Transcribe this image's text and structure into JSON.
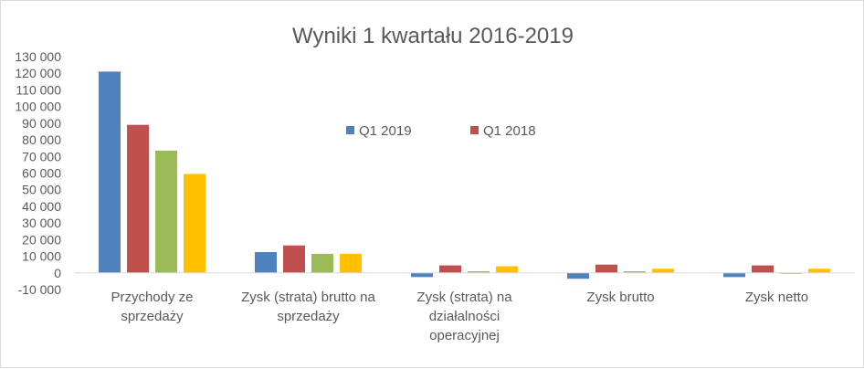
{
  "chart_data": {
    "type": "bar",
    "title": "Wyniki 1 kwartału 2016-2019",
    "xlabel": "",
    "ylabel": "",
    "ylim": [
      -10000,
      130000
    ],
    "y_ticks": [
      "130 000",
      "120 000",
      "110 000",
      "100 000",
      "90 000",
      "80 000",
      "70 000",
      "60 000",
      "50 000",
      "40 000",
      "30 000",
      "20 000",
      "10 000",
      "0",
      "-10 000"
    ],
    "categories": [
      [
        "Przychody ze",
        "sprzedaży"
      ],
      [
        "Zysk (strata) brutto na",
        "sprzedaży"
      ],
      [
        "Zysk (strata) na",
        "działalności",
        "operacyjnej"
      ],
      [
        "Zysk brutto"
      ],
      [
        "Zysk netto"
      ]
    ],
    "legend_position": "center",
    "grid": false,
    "series": [
      {
        "name": "Q1 2019",
        "color": "#4f81bd",
        "values": [
          121000,
          12500,
          -2500,
          -3500,
          -2500
        ]
      },
      {
        "name": "Q1 2018",
        "color": "#c0504d",
        "values": [
          89000,
          16500,
          4500,
          5000,
          4500
        ]
      },
      {
        "name": "",
        "color": "#9bbb59",
        "values": [
          73500,
          11500,
          1000,
          1000,
          0
        ]
      },
      {
        "name": "",
        "color": "#ffc000",
        "values": [
          59500,
          11500,
          4000,
          2500,
          2500
        ]
      }
    ]
  }
}
